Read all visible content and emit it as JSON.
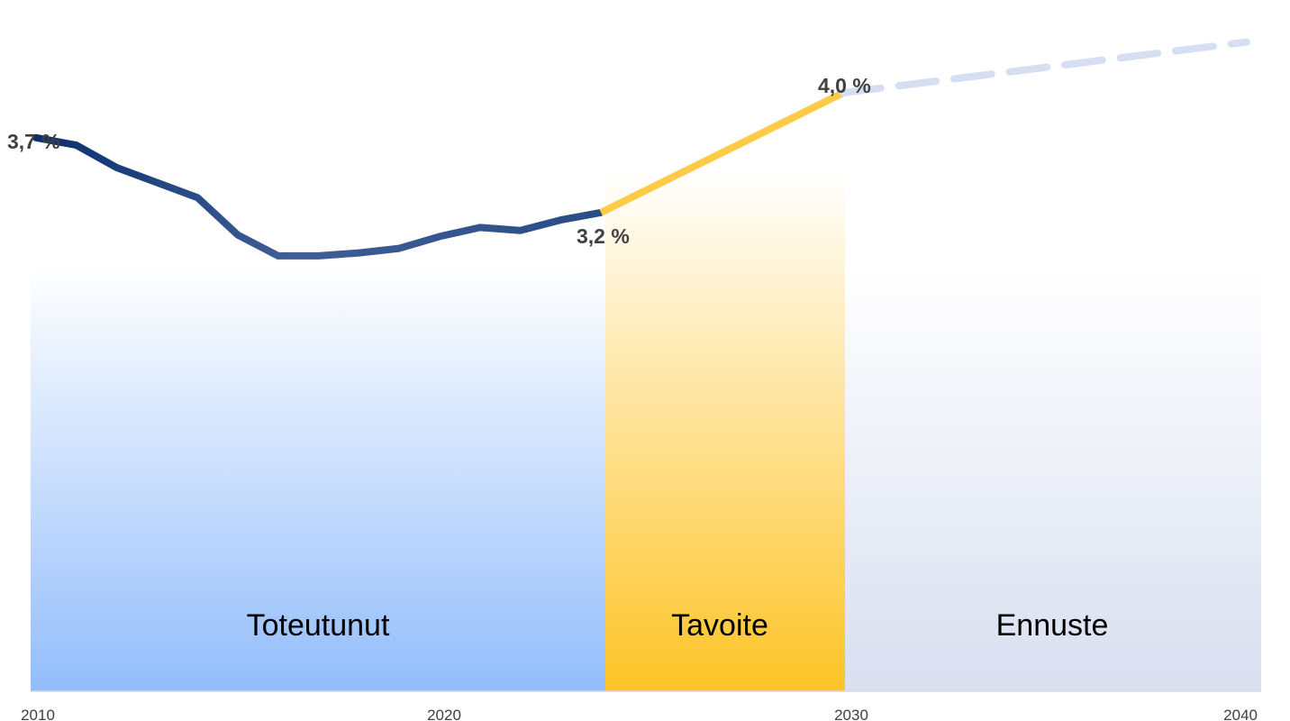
{
  "chart_data": {
    "type": "line",
    "x_range": [
      2010,
      2040
    ],
    "y_range": [
      0,
      4.5
    ],
    "x_ticks": [
      "2010",
      "2020",
      "2030",
      "2040"
    ],
    "grid": false,
    "legend": "none",
    "zones": [
      {
        "label": "Toteutunut",
        "from": 2010,
        "to": 2024,
        "color_top": "#ffffff",
        "color_bottom": "#92bdfb"
      },
      {
        "label": "Tavoite",
        "from": 2024,
        "to": 2030,
        "color_top": "#ffffff",
        "color_bottom": "#fdc426"
      },
      {
        "label": "Ennuste",
        "from": 2030,
        "to": 2040,
        "color_top": "#ffffff",
        "color_bottom": "#d9dff0"
      }
    ],
    "series": [
      {
        "style": "solid",
        "color_start": "#0a2f6e",
        "color_end": "#5a7ab8",
        "x": [
          2010,
          2011,
          2012,
          2013,
          2014,
          2015,
          2016,
          2017,
          2018,
          2019,
          2020,
          2021,
          2022,
          2023,
          2024
        ],
        "y": [
          3.7,
          3.65,
          3.5,
          3.4,
          3.3,
          3.05,
          2.91,
          2.91,
          2.93,
          2.96,
          3.04,
          3.1,
          3.08,
          3.15,
          3.2
        ]
      },
      {
        "style": "solid",
        "color": "#fdcb48",
        "x": [
          2024,
          2030
        ],
        "y": [
          3.2,
          4.0
        ]
      },
      {
        "style": "dashed",
        "color": "#d6def2",
        "x": [
          2030,
          2040
        ],
        "y": [
          4.0,
          4.34
        ]
      }
    ],
    "annotations": [
      {
        "text": "3,7 %",
        "x": 2010,
        "y": 3.7
      },
      {
        "text": "3,2 %",
        "x": 2024,
        "y": 3.2
      },
      {
        "text": "4,0 %",
        "x": 2030,
        "y": 4.0
      }
    ]
  }
}
